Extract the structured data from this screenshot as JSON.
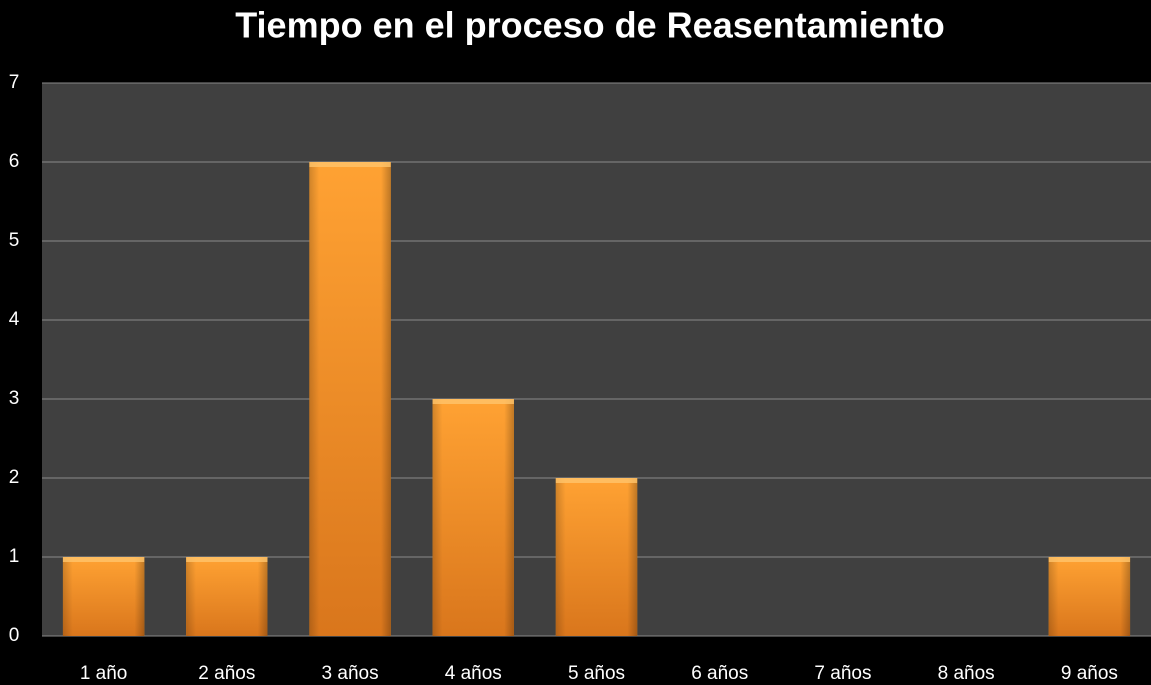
{
  "chart_data": {
    "type": "bar",
    "title": "Tiempo en el proceso de Reasentamiento",
    "categories": [
      "1 año",
      "2 años",
      "3 años",
      "4 años",
      "5 años",
      "6 años",
      "7 años",
      "8 años",
      "9 años"
    ],
    "values": [
      1,
      1,
      6,
      3,
      2,
      0,
      0,
      0,
      1
    ],
    "color": "#f7941d",
    "ylim": [
      0,
      7
    ],
    "yticks": [
      0,
      1,
      2,
      3,
      4,
      5,
      6,
      7
    ],
    "grid": true
  }
}
